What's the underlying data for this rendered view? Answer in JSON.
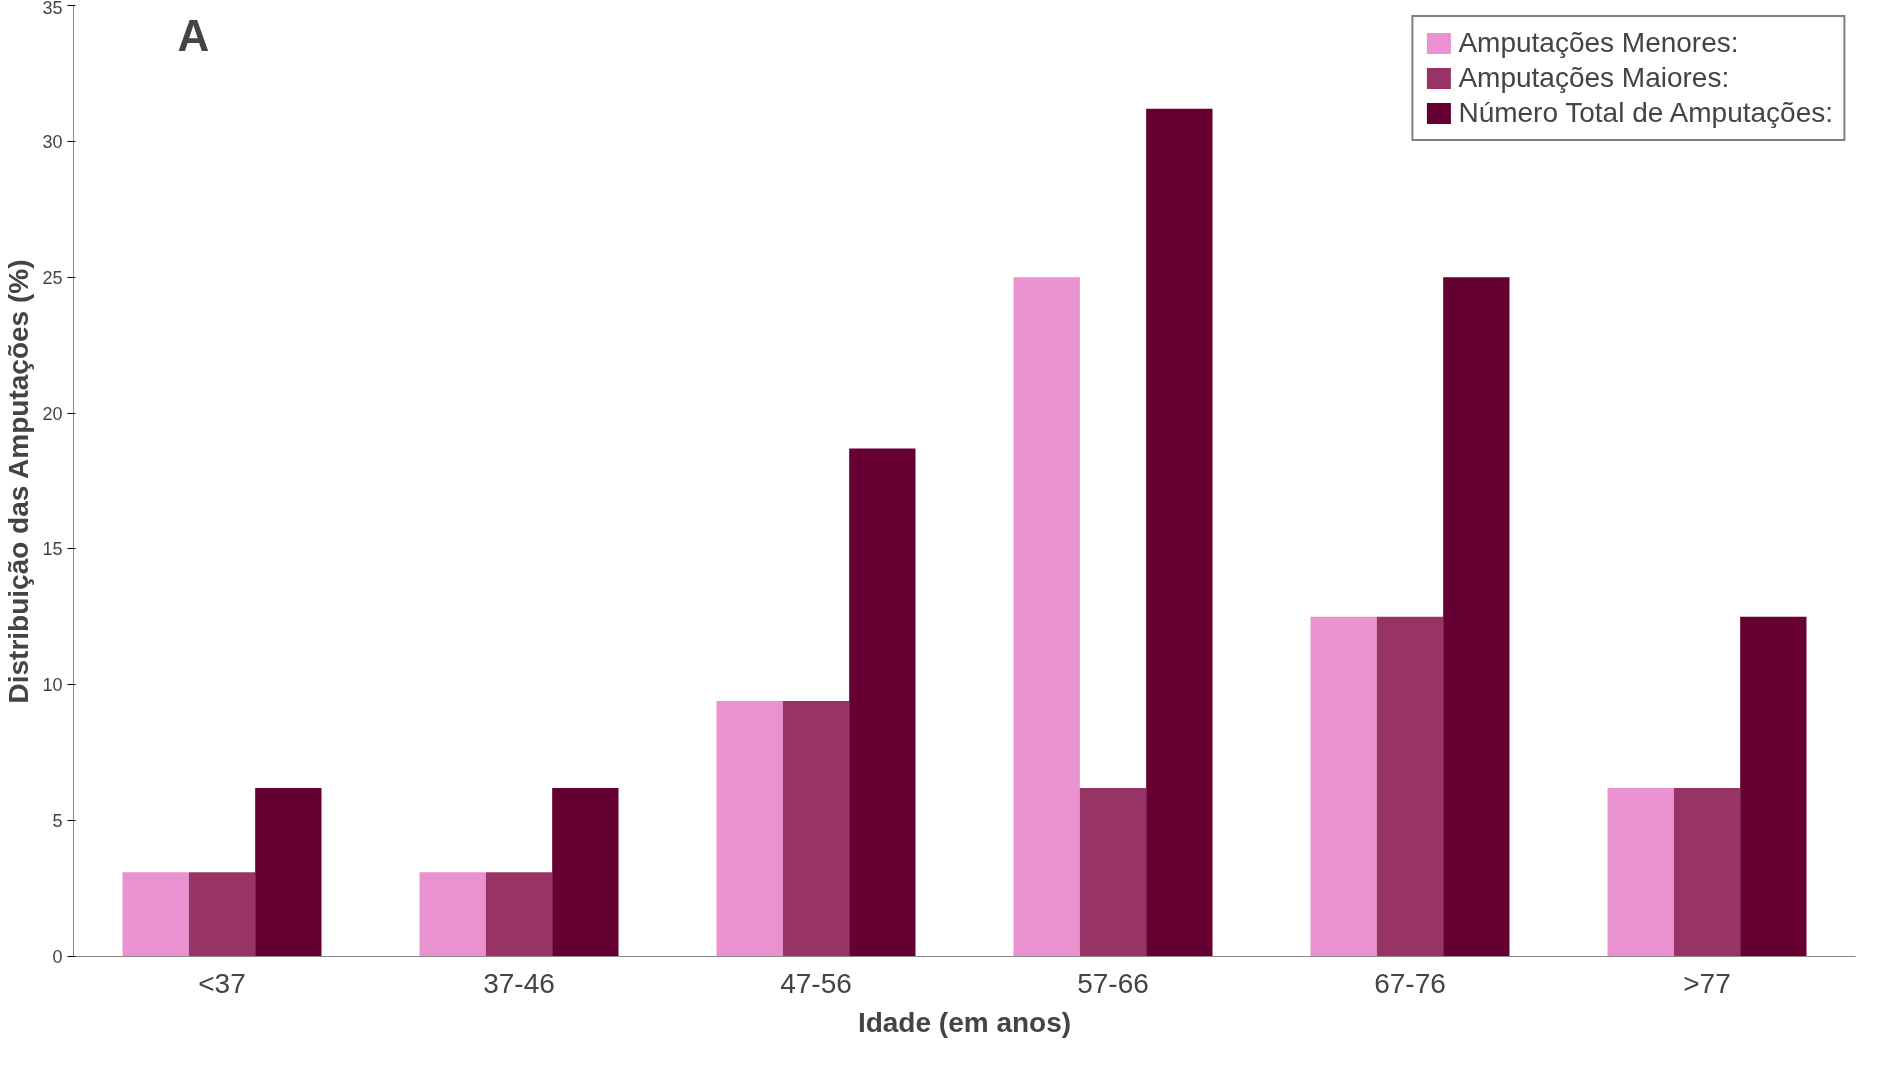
{
  "chart_data": {
    "type": "bar",
    "xlabel": "Idade (em anos)",
    "ylabel": "Distribuição das Amputações (%)",
    "categories": [
      "<37",
      "37-46",
      "47-56",
      "57-66",
      "67-76",
      ">77"
    ],
    "series": [
      {
        "name": "Amputações Menores:",
        "color": "#ea91cf",
        "values": [
          3.1,
          3.1,
          9.4,
          25.0,
          12.5,
          6.2
        ]
      },
      {
        "name": "Amputações Maiores:",
        "color": "#993366",
        "values": [
          3.1,
          3.1,
          9.4,
          6.2,
          12.5,
          6.2
        ]
      },
      {
        "name": "Número Total de Amputações:",
        "color": "#660033",
        "values": [
          6.2,
          6.2,
          18.7,
          31.2,
          25.0,
          12.5
        ]
      }
    ],
    "ylim": [
      0,
      35
    ],
    "yticks": [
      0,
      5,
      10,
      15,
      20,
      25,
      30,
      35
    ],
    "grid": false,
    "legend": "top right",
    "annotations": [
      "A"
    ]
  }
}
